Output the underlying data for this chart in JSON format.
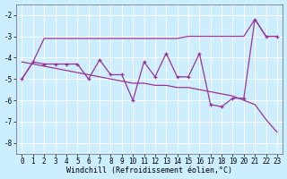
{
  "xlabel": "Windchill (Refroidissement éolien,°C)",
  "background_color": "#cceeff",
  "grid_color": "#ffffff",
  "line_color": "#993399",
  "x_values": [
    0,
    1,
    2,
    3,
    4,
    5,
    6,
    7,
    8,
    9,
    10,
    11,
    12,
    13,
    14,
    15,
    16,
    17,
    18,
    19,
    20,
    21,
    22,
    23
  ],
  "y_jagged": [
    -5.0,
    -4.2,
    -4.3,
    -4.3,
    -4.3,
    -4.3,
    -5.0,
    -4.1,
    -4.8,
    -4.8,
    -6.0,
    -4.2,
    -4.9,
    -3.8,
    -4.9,
    -4.9,
    -3.8,
    -6.2,
    -6.3,
    -5.9,
    -5.9,
    -2.2,
    -3.0,
    -3.0
  ],
  "y_trend": [
    -4.2,
    -4.3,
    -4.4,
    -4.5,
    -4.6,
    -4.7,
    -4.8,
    -4.9,
    -5.0,
    -5.1,
    -5.2,
    -5.2,
    -5.3,
    -5.3,
    -5.4,
    -5.4,
    -5.5,
    -5.6,
    -5.7,
    -5.8,
    -6.0,
    -6.2,
    -6.9,
    -7.5
  ],
  "y_upper": [
    -5.0,
    -4.2,
    -3.1,
    -3.1,
    -3.1,
    -3.1,
    -3.1,
    -3.1,
    -3.1,
    -3.1,
    -3.1,
    -3.1,
    -3.1,
    -3.1,
    -3.1,
    -3.0,
    -3.0,
    -3.0,
    -3.0,
    -3.0,
    -3.0,
    -2.2,
    -3.0,
    -3.0
  ],
  "ylim": [
    -8.5,
    -1.5
  ],
  "xlim": [
    -0.5,
    23.5
  ],
  "yticks": [
    -8,
    -7,
    -6,
    -5,
    -4,
    -3,
    -2
  ],
  "xticks": [
    0,
    1,
    2,
    3,
    4,
    5,
    6,
    7,
    8,
    9,
    10,
    11,
    12,
    13,
    14,
    15,
    16,
    17,
    18,
    19,
    20,
    21,
    22,
    23
  ],
  "tick_fontsize": 5.5,
  "xlabel_fontsize": 6.0
}
